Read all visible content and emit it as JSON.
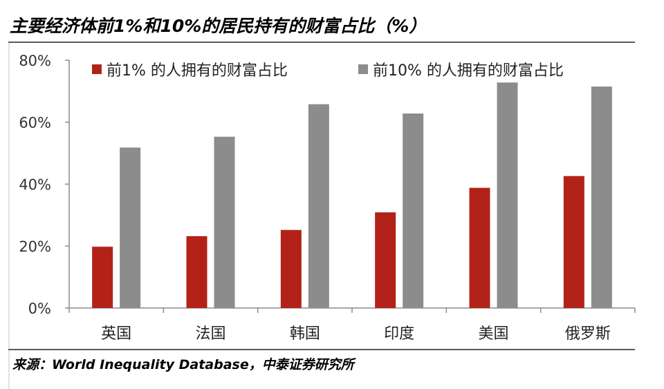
{
  "header": {
    "title": "主要经济体前1%和10%的居民持有的财富占比（%）"
  },
  "footer": {
    "source": "来源：World Inequality Database，中泰证券研究所"
  },
  "colors": {
    "series_top1": "#b22218",
    "series_top10": "#8c8c8c",
    "axis": "#8a8a8a",
    "rule": "#5a5a5a"
  },
  "chart_data": {
    "type": "bar",
    "categories": [
      "英国",
      "法国",
      "韩国",
      "印度",
      "美国",
      "俄罗斯"
    ],
    "series": [
      {
        "name": "前1% 的人拥有的财富占比",
        "values": [
          19.8,
          23.2,
          25.2,
          30.9,
          38.8,
          42.6
        ],
        "color": "#b22218"
      },
      {
        "name": "前10% 的人拥有的财富占比",
        "values": [
          51.8,
          55.3,
          65.8,
          62.8,
          72.8,
          71.5
        ],
        "color": "#8c8c8c"
      }
    ],
    "yticks": [
      "0%",
      "20%",
      "40%",
      "60%",
      "80%"
    ],
    "ylim": [
      0,
      80
    ],
    "grid": false,
    "legend_position": "top"
  }
}
